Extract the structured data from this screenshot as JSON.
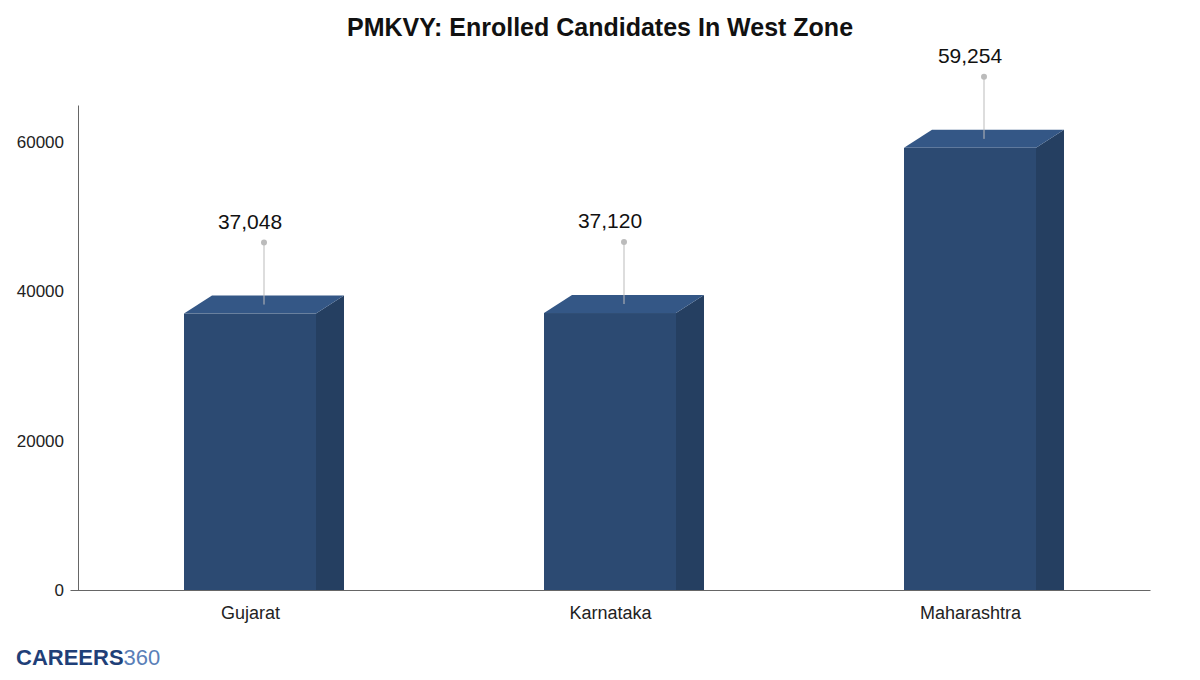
{
  "chart_data": {
    "type": "bar",
    "title": "PMKVY: Enrolled Candidates In West Zone",
    "categories": [
      "Gujarat",
      "Karnataka",
      "Maharashtra"
    ],
    "values": [
      37048,
      37120,
      59254
    ],
    "value_labels": [
      "37,048",
      "37,120",
      "59,254"
    ],
    "data_labels": true,
    "color": "#2c4a72",
    "ylim": [
      0,
      65000
    ],
    "yticks": [
      0,
      20000,
      40000,
      60000
    ],
    "grid": false,
    "logo": "CAREERS360"
  }
}
